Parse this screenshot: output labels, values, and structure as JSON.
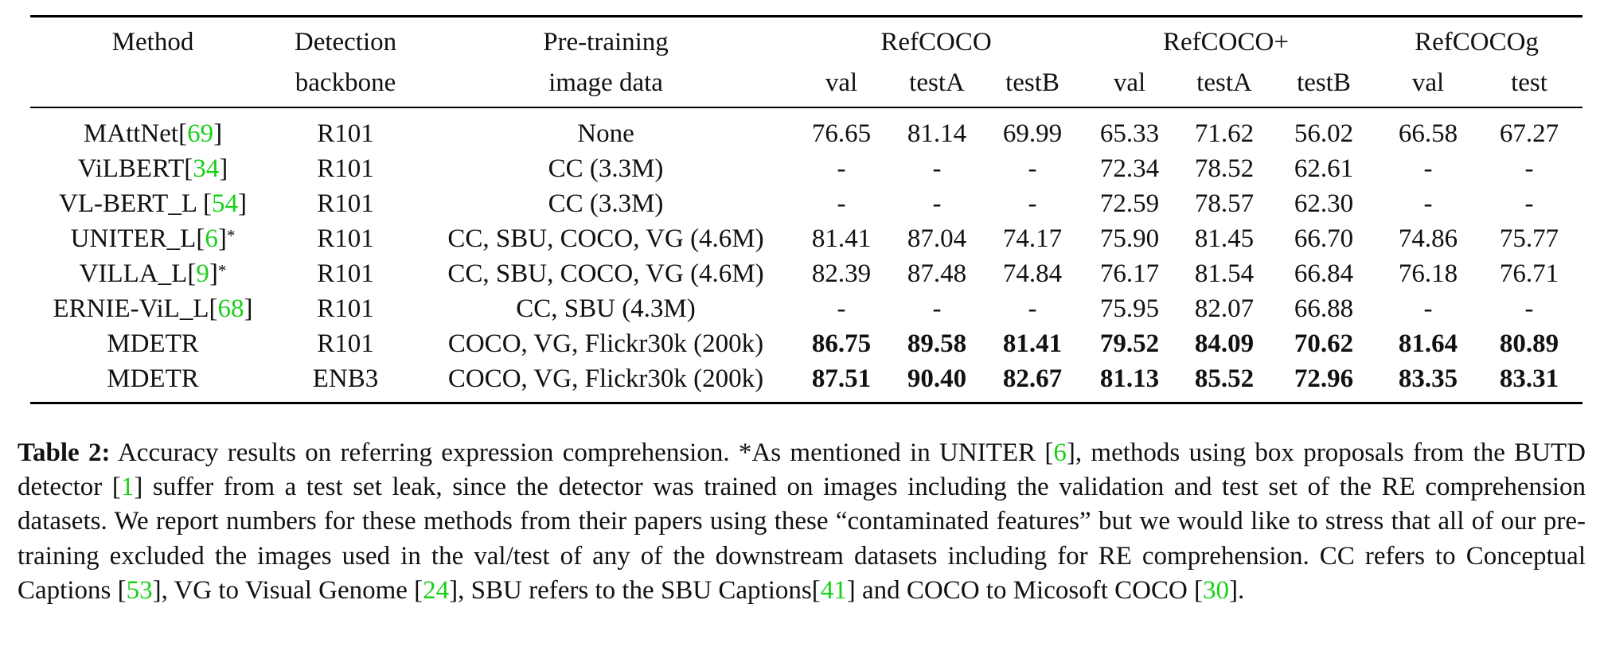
{
  "table": {
    "header_row1": {
      "method": "Method",
      "detection": "Detection",
      "pretraining": "Pre-training",
      "group_refcoco": "RefCOCO",
      "group_refcocoplus": "RefCOCO+",
      "group_refcocog": "RefCOCOg"
    },
    "header_row2": {
      "detection": "backbone",
      "pretraining": "image data",
      "cols": [
        "val",
        "testA",
        "testB",
        "val",
        "testA",
        "testB",
        "val",
        "test"
      ]
    },
    "rows": [
      {
        "name": "MAttNet",
        "cite": "69",
        "star": "",
        "backbone": "R101",
        "data": "None",
        "values": [
          "76.65",
          "81.14",
          "69.99",
          "65.33",
          "71.62",
          "56.02",
          "66.58",
          "67.27"
        ],
        "bold": false
      },
      {
        "name": "ViLBERT",
        "cite": "34",
        "star": "",
        "backbone": "R101",
        "data": "CC (3.3M)",
        "values": [
          "-",
          "-",
          "-",
          "72.34",
          "78.52",
          "62.61",
          "-",
          "-"
        ],
        "bold": false
      },
      {
        "name": "VL-BERT_L ",
        "cite": "54",
        "star": "",
        "backbone": "R101",
        "data": "CC (3.3M)",
        "values": [
          "-",
          "-",
          "-",
          "72.59",
          "78.57",
          "62.30",
          "-",
          "-"
        ],
        "bold": false
      },
      {
        "name": "UNITER_L",
        "cite": "6",
        "star": "*",
        "backbone": "R101",
        "data": "CC, SBU, COCO, VG (4.6M)",
        "values": [
          "81.41",
          "87.04",
          "74.17",
          "75.90",
          "81.45",
          "66.70",
          "74.86",
          "75.77"
        ],
        "bold": false
      },
      {
        "name": "VILLA_L",
        "cite": "9",
        "star": "*",
        "backbone": "R101",
        "data": "CC, SBU, COCO, VG (4.6M)",
        "values": [
          "82.39",
          "87.48",
          "74.84",
          "76.17",
          "81.54",
          "66.84",
          "76.18",
          "76.71"
        ],
        "bold": false
      },
      {
        "name": "ERNIE-ViL_L",
        "cite": "68",
        "star": "",
        "backbone": "R101",
        "data": "CC, SBU (4.3M)",
        "values": [
          "-",
          "-",
          "-",
          "75.95",
          "82.07",
          "66.88",
          "-",
          "-"
        ],
        "bold": false
      },
      {
        "name": "MDETR",
        "cite": "",
        "star": "",
        "backbone": "R101",
        "data": "COCO, VG, Flickr30k (200k)",
        "values": [
          "86.75",
          "89.58",
          "81.41",
          "79.52",
          "84.09",
          "70.62",
          "81.64",
          "80.89"
        ],
        "bold": true
      },
      {
        "name": "MDETR",
        "cite": "",
        "star": "",
        "backbone": "ENB3",
        "data": "COCO, VG, Flickr30k (200k)",
        "values": [
          "87.51",
          "90.40",
          "82.67",
          "81.13",
          "85.52",
          "72.96",
          "83.35",
          "83.31"
        ],
        "bold": true
      }
    ]
  },
  "caption": {
    "label": "Table 2:",
    "segments": [
      {
        "t": " Accuracy results on referring expression comprehension.  *As mentioned in UNITER ["
      },
      {
        "t": "6",
        "cite": true
      },
      {
        "t": "], methods using box proposals from the BUTD detector ["
      },
      {
        "t": "1",
        "cite": true
      },
      {
        "t": "] suffer from a test set leak, since the detector was trained on images including the validation and test set of the RE comprehension datasets.  We report numbers for these methods from their papers using these “contaminated features” but we would like to stress that all of our pre-training excluded the images used in the val/test of any of the downstream datasets including for RE comprehension. CC refers to Conceptual Captions ["
      },
      {
        "t": "53",
        "cite": true
      },
      {
        "t": "], VG to Visual Genome ["
      },
      {
        "t": "24",
        "cite": true
      },
      {
        "t": "], SBU refers to the SBU Captions["
      },
      {
        "t": "41",
        "cite": true
      },
      {
        "t": "] and COCO to Micosoft COCO ["
      },
      {
        "t": "30",
        "cite": true
      },
      {
        "t": "]."
      }
    ]
  },
  "colors": {
    "citation": "#19d019",
    "text": "#111111"
  }
}
